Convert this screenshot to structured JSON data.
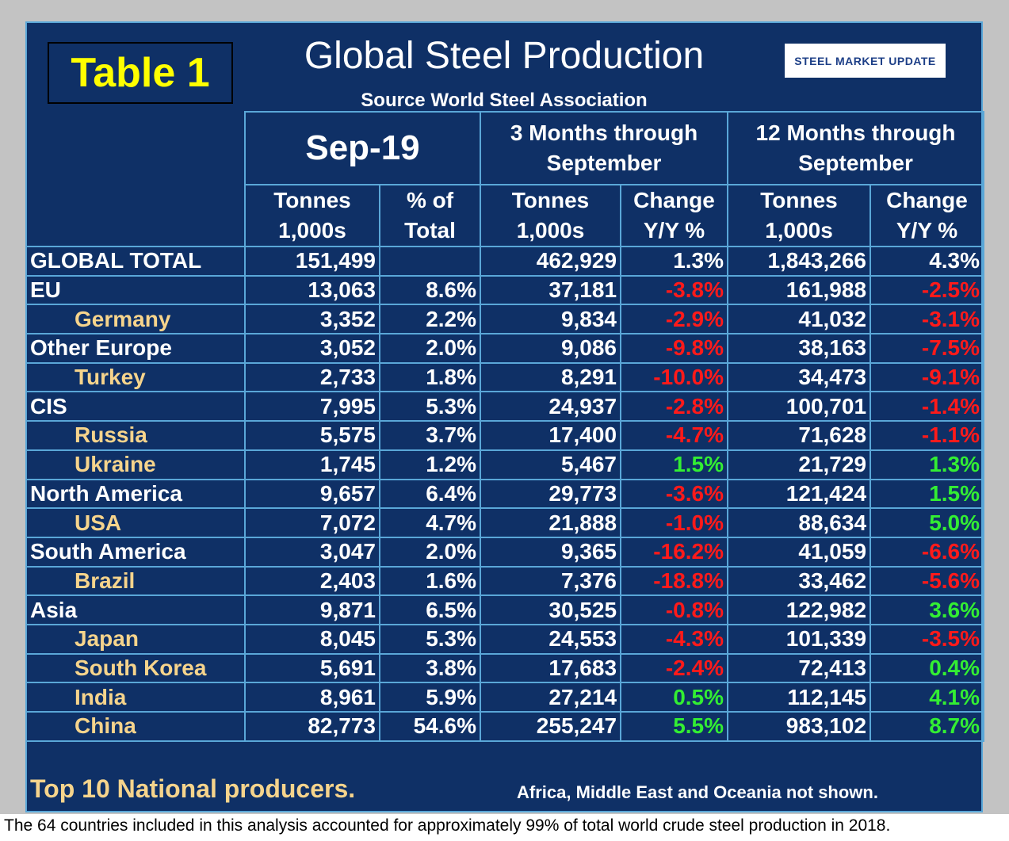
{
  "header": {
    "table_label": "Table 1",
    "title": "Global Steel Production",
    "source": "Source World Steel Association",
    "logo": "STEEL MARKET UPDATE"
  },
  "table": {
    "groups": [
      "Sep-19",
      "3 Months through\nSeptember",
      "12 Months through\nSeptember"
    ],
    "columns": [
      "Tonnes\n1,000s",
      "% of\nTotal",
      "Tonnes\n1,000s",
      "Change\nY/Y %",
      "Tonnes\n1,000s",
      "Change\nY/Y %"
    ],
    "total": {
      "name": "GLOBAL TOTAL",
      "cells": [
        "151,499",
        null,
        "462,929",
        "1.3%",
        "1,843,266",
        "4.3%"
      ]
    },
    "regions": [
      {
        "name": "EU",
        "cells": [
          "13,063",
          "8.6%",
          "37,181",
          "-3.8%",
          "161,988",
          "-2.5%"
        ],
        "countries": [
          {
            "name": "Germany",
            "cells": [
              "3,352",
              "2.2%",
              "9,834",
              "-2.9%",
              "41,032",
              "-3.1%"
            ]
          }
        ]
      },
      {
        "name": "Other Europe",
        "cells": [
          "3,052",
          "2.0%",
          "9,086",
          "-9.8%",
          "38,163",
          "-7.5%"
        ],
        "countries": [
          {
            "name": "Turkey",
            "cells": [
              "2,733",
              "1.8%",
              "8,291",
              "-10.0%",
              "34,473",
              "-9.1%"
            ]
          }
        ]
      },
      {
        "name": "CIS",
        "cells": [
          "7,995",
          "5.3%",
          "24,937",
          "-2.8%",
          "100,701",
          "-1.4%"
        ],
        "countries": [
          {
            "name": "Russia",
            "cells": [
              "5,575",
              "3.7%",
              "17,400",
              "-4.7%",
              "71,628",
              "-1.1%"
            ]
          },
          {
            "name": "Ukraine",
            "cells": [
              "1,745",
              "1.2%",
              "5,467",
              "1.5%",
              "21,729",
              "1.3%"
            ]
          }
        ]
      },
      {
        "name": "North America",
        "cells": [
          "9,657",
          "6.4%",
          "29,773",
          "-3.6%",
          "121,424",
          "1.5%"
        ],
        "countries": [
          {
            "name": "USA",
            "cells": [
              "7,072",
              "4.7%",
              "21,888",
              "-1.0%",
              "88,634",
              "5.0%"
            ]
          }
        ]
      },
      {
        "name": "South America",
        "cells": [
          "3,047",
          "2.0%",
          "9,365",
          "-16.2%",
          "41,059",
          "-6.6%"
        ],
        "countries": [
          {
            "name": "Brazil",
            "cells": [
              "2,403",
              "1.6%",
              "7,376",
              "-18.8%",
              "33,462",
              "-5.6%"
            ]
          }
        ]
      },
      {
        "name": "Asia",
        "cells": [
          "9,871",
          "6.5%",
          "30,525",
          "-0.8%",
          "122,982",
          "3.6%"
        ],
        "countries": [
          {
            "name": "Japan",
            "cells": [
              "8,045",
              "5.3%",
              "24,553",
              "-4.3%",
              "101,339",
              "-3.5%"
            ]
          },
          {
            "name": "South Korea",
            "cells": [
              "5,691",
              "3.8%",
              "17,683",
              "-2.4%",
              "72,413",
              "0.4%"
            ]
          },
          {
            "name": "India",
            "cells": [
              "8,961",
              "5.9%",
              "27,214",
              "0.5%",
              "112,145",
              "4.1%"
            ]
          },
          {
            "name": "China",
            "cells": [
              "82,773",
              "54.6%",
              "255,247",
              "5.5%",
              "983,102",
              "8.7%"
            ]
          }
        ]
      }
    ]
  },
  "footer": {
    "note": "Top 10 National producers.",
    "exclusion": "Africa, Middle East and Oceania not shown.",
    "caption": "The 64 countries included in this analysis accounted for approximately 99% of total world crude steel production in 2018."
  }
}
